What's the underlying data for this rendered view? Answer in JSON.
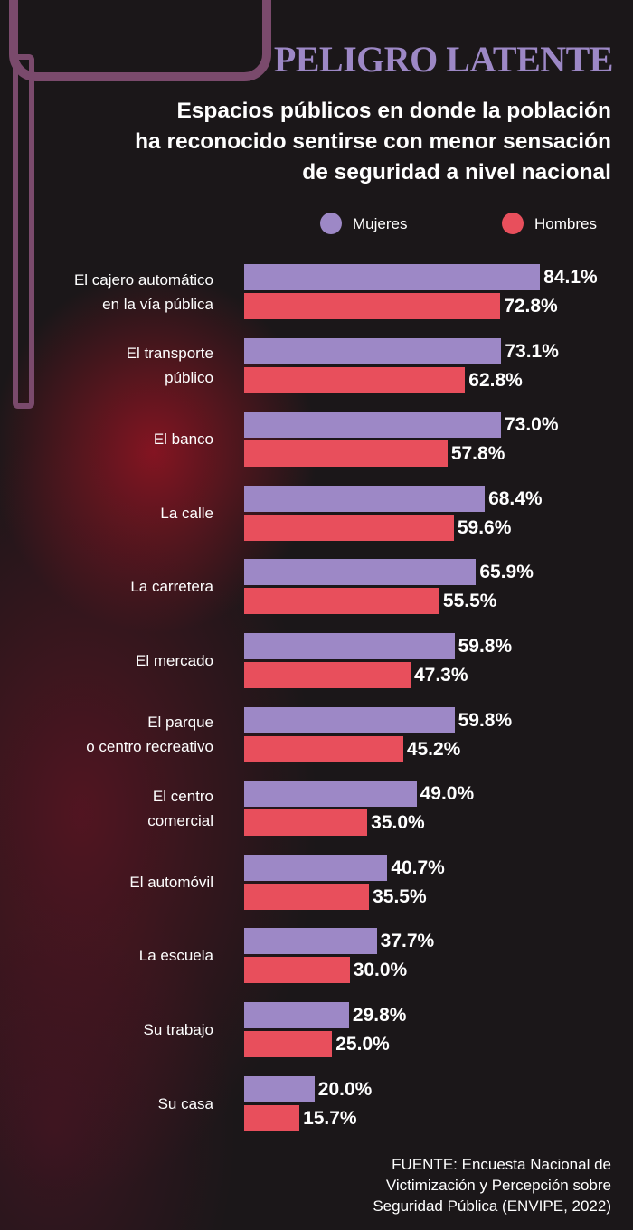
{
  "chart_data": {
    "type": "bar",
    "orientation": "horizontal",
    "title": "PELIGRO LATENTE",
    "subtitle": "Espacios públicos en donde la población\nha reconocido sentirse con menor sensación\nde seguridad a nivel nacional",
    "categories": [
      "El cajero automático\nen la vía pública",
      "El transporte\npúblico",
      "El banco",
      "La calle",
      "La carretera",
      "El mercado",
      "El parque\no centro recreativo",
      "El centro\ncomercial",
      "El automóvil",
      "La escuela",
      "Su trabajo",
      "Su casa"
    ],
    "series": [
      {
        "name": "Mujeres",
        "color": "#9d88c6",
        "values": [
          84.1,
          73.1,
          73.0,
          68.4,
          65.9,
          59.8,
          59.8,
          49.0,
          40.7,
          37.7,
          29.8,
          20.0
        ],
        "value_labels": [
          "84.1%",
          "73.1%",
          "73.0%",
          "68.4%",
          "65.9%",
          "59.8%",
          "59.8%",
          "49.0%",
          "40.7%",
          "37.7%",
          "29.8%",
          "20.0%"
        ]
      },
      {
        "name": "Hombres",
        "color": "#e84f5c",
        "values": [
          72.8,
          62.8,
          57.8,
          59.6,
          55.5,
          47.3,
          45.2,
          35.0,
          35.5,
          30.0,
          25.0,
          15.7
        ],
        "value_labels": [
          "72.8%",
          "62.8%",
          "57.8%",
          "59.6%",
          "55.5%",
          "47.3%",
          "45.2%",
          "35.0%",
          "35.5%",
          "30.0%",
          "25.0%",
          "15.7%"
        ]
      }
    ],
    "source": "FUENTE: Encuesta Nacional de\nVictimización y Percepción sobre\nSeguridad Pública (ENVIPE, 2022)"
  }
}
